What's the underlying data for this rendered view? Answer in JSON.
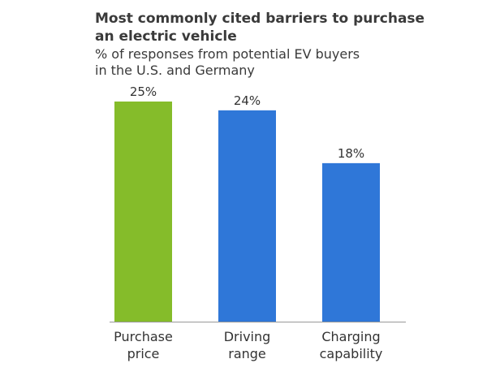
{
  "chart_data": {
    "type": "bar",
    "title": "Most commonly cited barriers to purchase an electric vehicle",
    "title_lines": [
      "Most commonly cited barriers to purchase",
      "an electric vehicle"
    ],
    "subtitle": "% of responses from potential EV buyers in the U.S. and Germany",
    "subtitle_lines": [
      "% of responses from potential EV buyers",
      "in the U.S. and Germany"
    ],
    "categories": [
      "Purchase price",
      "Driving range",
      "Charging capability"
    ],
    "category_lines": [
      [
        "Purchase",
        "price"
      ],
      [
        "Driving",
        "range"
      ],
      [
        "Charging",
        "capability"
      ]
    ],
    "values": [
      25,
      24,
      18
    ],
    "value_labels": [
      "25%",
      "24%",
      "18%"
    ],
    "colors": [
      "#85bc2a",
      "#2f77d8",
      "#2f77d8"
    ],
    "ylim": [
      0,
      25
    ],
    "xlabel": "",
    "ylabel": "",
    "grid": false,
    "axis_color": "#999999"
  }
}
